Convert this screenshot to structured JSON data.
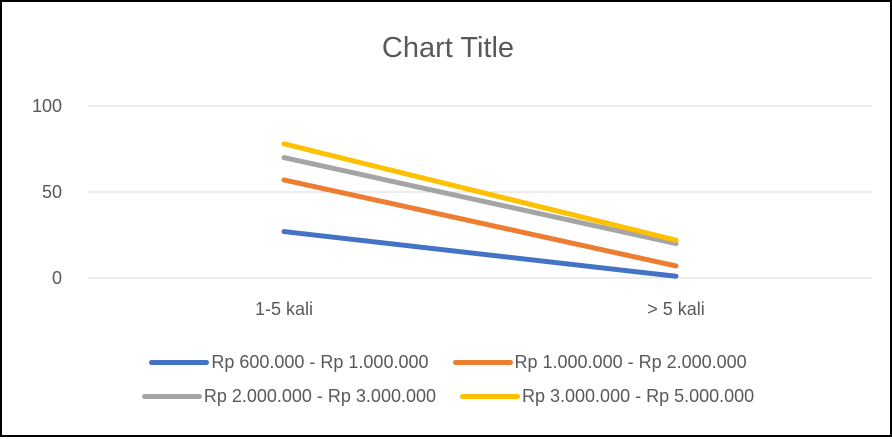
{
  "chart_data": {
    "type": "line",
    "title": "Chart Title",
    "categories": [
      "1-5 kali",
      "> 5 kali"
    ],
    "ylim": [
      0,
      100
    ],
    "yticks": [
      "0",
      "50",
      "100"
    ],
    "grid": true,
    "legend_position": "bottom",
    "series": [
      {
        "name": "Rp 600.000 - Rp 1.000.000",
        "values": [
          27,
          1
        ],
        "color": "#4472C4"
      },
      {
        "name": "Rp 1.000.000 - Rp 2.000.000",
        "values": [
          57,
          7
        ],
        "color": "#ED7D31"
      },
      {
        "name": "Rp 2.000.000 - Rp 3.000.000",
        "values": [
          70,
          20
        ],
        "color": "#A5A5A5"
      },
      {
        "name": "Rp 3.000.000 - Rp 5.000.000",
        "values": [
          78,
          22
        ],
        "color": "#FFC000"
      }
    ]
  }
}
